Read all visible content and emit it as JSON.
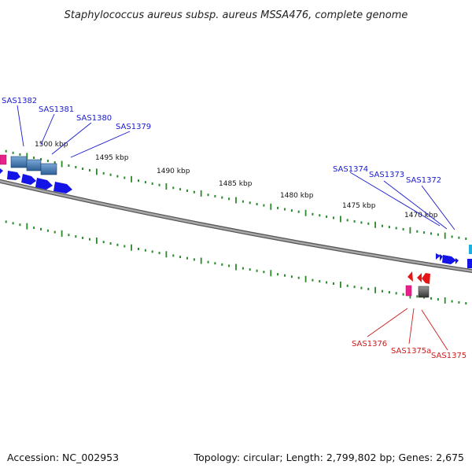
{
  "title": "Staphylococcus aureus subsp. aureus MSSA476, complete genome",
  "accession": "Accession: NC_002953",
  "summary": "Topology: circular; Length: 2,799,802 bp; Genes: 2,675",
  "scale_labels": [
    "1500 kbp",
    "1495 kbp",
    "1490 kbp",
    "1485 kbp",
    "1480 kbp",
    "1475 kbp",
    "1470 kbp"
  ],
  "genes_forward": [
    "SAS1382",
    "SAS1381",
    "SAS1380",
    "SAS1379",
    "SAS1374",
    "SAS1373",
    "SAS1372"
  ],
  "genes_reverse": [
    "SAS1376",
    "SAS1375a",
    "SAS1375"
  ],
  "colors": {
    "backbone": "#808080",
    "tick": "#2a8a2a",
    "forward_label": "#1a1ad0",
    "reverse_label": "#d01a1a",
    "gene_blue": "#1414e6",
    "gene_steel": "#4a7fb8",
    "gene_pink": "#e8208a",
    "gene_red": "#e61414",
    "gene_gray": "#555555",
    "gene_cyan": "#20b0e0"
  }
}
